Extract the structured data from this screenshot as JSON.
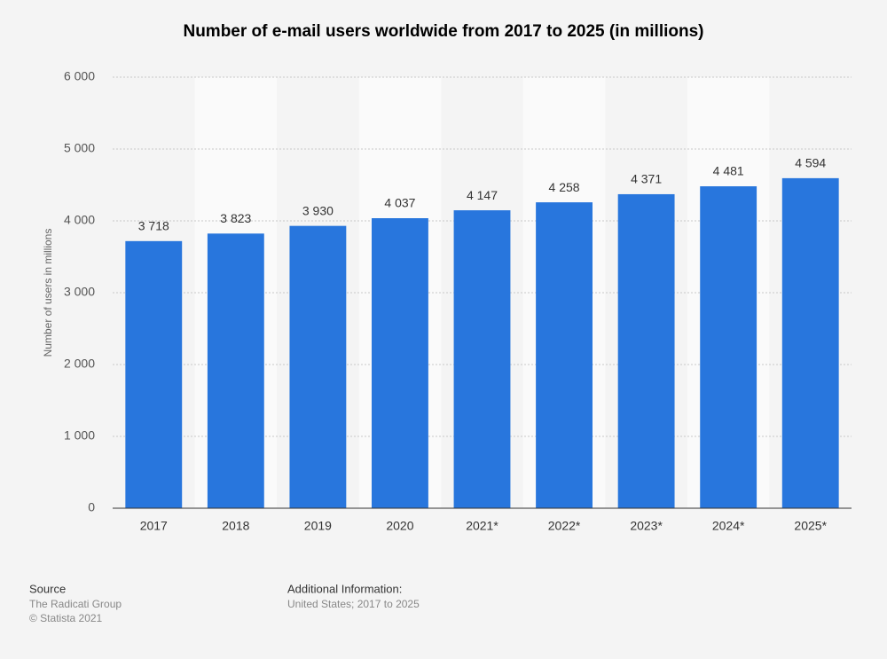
{
  "chart_data": {
    "type": "bar",
    "title": "Number of e-mail users worldwide from 2017 to 2025 (in millions)",
    "y_label": "Number of users in millions",
    "categories": [
      "2017",
      "2018",
      "2019",
      "2020",
      "2021*",
      "2022*",
      "2023*",
      "2024*",
      "2025*"
    ],
    "values": [
      3718,
      3823,
      3930,
      4037,
      4147,
      4258,
      4371,
      4481,
      4594
    ],
    "value_labels": [
      "3 718",
      "3 823",
      "3 930",
      "4 037",
      "4 147",
      "4 258",
      "4 371",
      "4 481",
      "4 594"
    ],
    "color": "#2876dd",
    "ylim": [
      0,
      6000
    ],
    "yticks": [
      0,
      {
        "value": 1000,
        "label": "1 000"
      },
      {
        "value": 2000,
        "label": "2 000"
      },
      {
        "value": 3000,
        "label": "3 000"
      },
      {
        "value": 4000,
        "label": "4 000"
      },
      {
        "value": 5000,
        "label": "5 000"
      },
      {
        "value": 6000,
        "label": "6 000"
      }
    ],
    "grid": true
  },
  "footer": {
    "source_heading": "Source",
    "source": "The Radicati Group",
    "copyright": "© Statista 2021",
    "info_heading": "Additional Information:",
    "info": "United States; 2017 to 2025"
  }
}
